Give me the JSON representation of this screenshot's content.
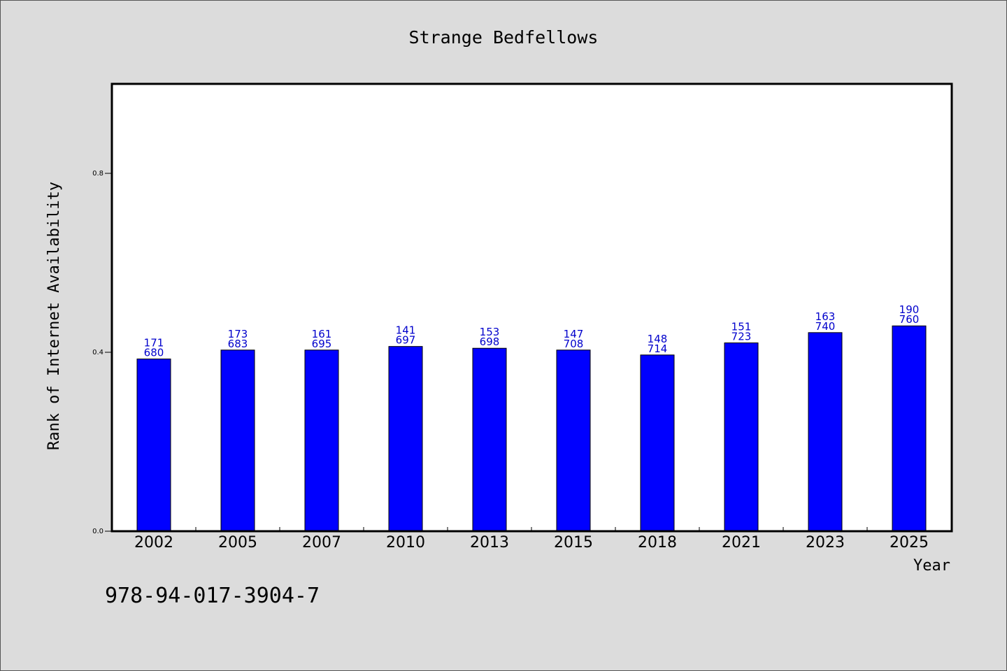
{
  "chart_data": {
    "type": "bar",
    "title": "Strange Bedfellows",
    "xlabel": "Year",
    "ylabel": "Rank of Internet Availability",
    "categories": [
      "2002",
      "2005",
      "2007",
      "2010",
      "2013",
      "2015",
      "2018",
      "2021",
      "2023",
      "2025"
    ],
    "values": [
      0.385,
      0.405,
      0.405,
      0.413,
      0.409,
      0.405,
      0.394,
      0.421,
      0.444,
      0.459
    ],
    "labels_top": [
      "171",
      "173",
      "161",
      "141",
      "153",
      "147",
      "148",
      "151",
      "163",
      "190"
    ],
    "labels_bottom": [
      "680",
      "683",
      "695",
      "697",
      "698",
      "708",
      "714",
      "723",
      "740",
      "760"
    ],
    "yticks": [
      0.0,
      0.4,
      0.8
    ],
    "ytick_labels": [
      "0.0",
      "0.4",
      "0.8"
    ],
    "ylim": [
      0,
      1.0
    ],
    "bar_color": "#0000ff",
    "label_color": "#0000cc",
    "grid": false
  },
  "footer": {
    "isbn": "978-94-017-3904-7"
  }
}
